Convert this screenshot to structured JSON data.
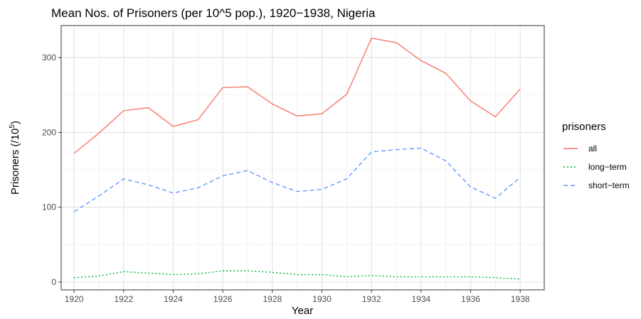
{
  "chart_data": {
    "type": "line",
    "title": "Mean Nos. of Prisoners (per 10^5 pop.), 1920−1938, Nigeria",
    "x_label": "Year",
    "y_label": {
      "text": "Prisoners (/10",
      "superscript": "5",
      "suffix": ")"
    },
    "x": [
      1920,
      1921,
      1922,
      1923,
      1924,
      1925,
      1926,
      1927,
      1928,
      1929,
      1930,
      1931,
      1932,
      1933,
      1934,
      1935,
      1936,
      1937,
      1938
    ],
    "series": [
      {
        "name": "all",
        "color": "#f8766d",
        "dash": "solid",
        "values": [
          172,
          199,
          229,
          233,
          208,
          217,
          260,
          261,
          238,
          222,
          225,
          251,
          326,
          320,
          296,
          279,
          242,
          221,
          258
        ]
      },
      {
        "name": "long−term",
        "color": "#00ba38",
        "dash": "dotted",
        "values": [
          6,
          8,
          14,
          12,
          10,
          11,
          15,
          15,
          13,
          10,
          10,
          7,
          9,
          7,
          7,
          7,
          7,
          6,
          4
        ]
      },
      {
        "name": "short−term",
        "color": "#619cff",
        "dash": "dashed",
        "values": [
          94,
          115,
          138,
          130,
          119,
          126,
          142,
          149,
          133,
          121,
          124,
          138,
          174,
          177,
          179,
          162,
          127,
          112,
          140
        ]
      }
    ],
    "legend_title": "prisoners",
    "legend_position": "right",
    "xlim": [
      1919.48,
      1938.97
    ],
    "ylim": [
      -10.4,
      342.8
    ],
    "xticks": [
      1920,
      1922,
      1924,
      1926,
      1928,
      1930,
      1932,
      1934,
      1936,
      1938
    ],
    "yticks": [
      0,
      100,
      200,
      300
    ],
    "grid": true
  }
}
